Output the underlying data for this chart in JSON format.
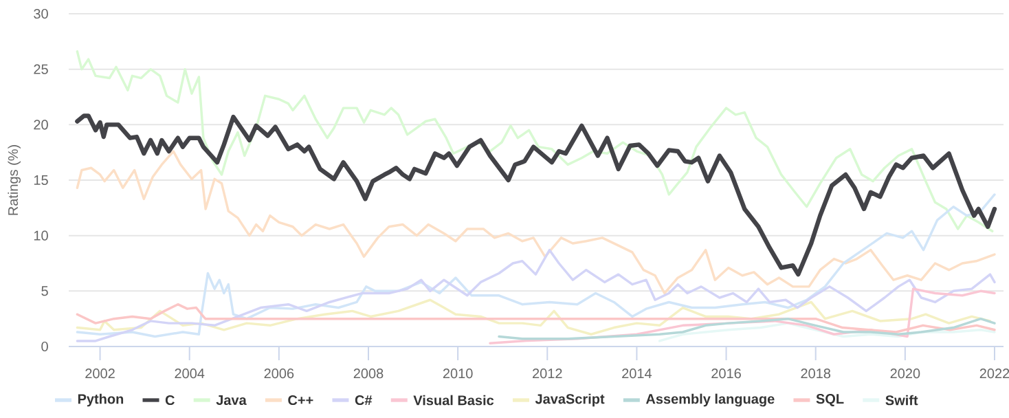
{
  "chart_data": {
    "type": "line",
    "ylabel": "Ratings (%)",
    "xlim": [
      2001.3,
      2022.2
    ],
    "xticks": [
      2002,
      2004,
      2006,
      2008,
      2010,
      2012,
      2014,
      2016,
      2018,
      2020,
      2022
    ],
    "ylim": [
      0,
      30
    ],
    "yticks": [
      0,
      5,
      10,
      15,
      20,
      25,
      30
    ],
    "grid": "y",
    "legend": "bottom",
    "line_style": "solid",
    "series": [
      {
        "name": "Python",
        "color": "#d1e5f8",
        "x": [
          2001.49,
          2002.0,
          2002.72,
          2003.23,
          2003.85,
          2004.21,
          2004.26,
          2004.41,
          2004.56,
          2004.67,
          2004.77,
          2004.87,
          2004.98,
          2005.28,
          2005.8,
          2006.31,
          2006.82,
          2007.33,
          2007.74,
          2007.95,
          2008.15,
          2008.67,
          2009.18,
          2009.59,
          2009.95,
          2010.31,
          2010.92,
          2011.44,
          2012.05,
          2012.67,
          2013.08,
          2013.49,
          2013.9,
          2014.21,
          2014.72,
          2015.23,
          2015.75,
          2016.36,
          2016.87,
          2017.38,
          2017.8,
          2018.21,
          2018.62,
          2019.59,
          2019.95,
          2020.15,
          2020.41,
          2020.72,
          2021.08,
          2021.38,
          2021.69,
          2022.0
        ],
        "values": [
          1.3,
          1.1,
          1.3,
          0.9,
          1.3,
          1.1,
          2.7,
          6.6,
          5.2,
          6,
          4.8,
          5.6,
          2.9,
          2.5,
          3.5,
          3.4,
          3.8,
          3.5,
          4,
          5.4,
          5,
          5,
          5.8,
          4.8,
          6.2,
          4.6,
          4.6,
          3.8,
          4,
          3.8,
          4.8,
          4,
          2.7,
          3.4,
          4,
          3.5,
          3.5,
          3.8,
          4,
          3.5,
          4.2,
          5.4,
          7.5,
          10.2,
          9.8,
          10.4,
          8.7,
          11.4,
          12.6,
          11.8,
          12.2,
          13.7
        ]
      },
      {
        "name": "C",
        "color": "#434348",
        "x": [
          2001.49,
          2001.64,
          2001.74,
          2001.9,
          2002.0,
          2002.08,
          2002.15,
          2002.41,
          2002.67,
          2002.82,
          2002.98,
          2003.13,
          2003.28,
          2003.38,
          2003.54,
          2003.74,
          2003.85,
          2004.0,
          2004.21,
          2004.31,
          2004.62,
          2004.77,
          2004.98,
          2005.34,
          2005.49,
          2005.75,
          2005.92,
          2006.21,
          2006.41,
          2006.57,
          2006.67,
          2006.92,
          2007.23,
          2007.44,
          2007.74,
          2007.93,
          2008.1,
          2008.36,
          2008.46,
          2008.62,
          2008.77,
          2008.92,
          2009.03,
          2009.28,
          2009.49,
          2009.69,
          2009.8,
          2009.98,
          2010.26,
          2010.51,
          2010.72,
          2011.13,
          2011.28,
          2011.49,
          2011.69,
          2012.1,
          2012.26,
          2012.41,
          2012.77,
          2013.13,
          2013.34,
          2013.59,
          2013.85,
          2014.05,
          2014.26,
          2014.46,
          2014.72,
          2014.92,
          2015.08,
          2015.23,
          2015.38,
          2015.59,
          2015.85,
          2016.1,
          2016.41,
          2016.72,
          2016.97,
          2017.23,
          2017.49,
          2017.61,
          2017.9,
          2018.1,
          2018.36,
          2018.67,
          2018.87,
          2019.08,
          2019.23,
          2019.44,
          2019.64,
          2019.8,
          2019.95,
          2020.15,
          2020.41,
          2020.62,
          2020.98,
          2021.28,
          2021.54,
          2021.64,
          2021.85,
          2022.0
        ],
        "values": [
          20.3,
          20.8,
          20.8,
          19.5,
          20.2,
          18.9,
          20,
          20,
          18.8,
          18.9,
          17.4,
          18.6,
          17.4,
          18.6,
          17.6,
          18.8,
          18,
          18.8,
          18.8,
          18,
          16.6,
          18.2,
          20.7,
          18.6,
          19.9,
          19,
          19.8,
          17.8,
          18.2,
          17.6,
          18,
          16,
          15.1,
          16.6,
          14.9,
          13.3,
          14.9,
          15.5,
          15.7,
          16.1,
          15.5,
          15.1,
          16,
          15.6,
          17.4,
          17,
          17.4,
          16.3,
          18,
          18.6,
          17.2,
          15,
          16.4,
          16.7,
          18,
          16.6,
          17.6,
          17.4,
          19.9,
          17.2,
          18.8,
          16,
          18.1,
          18.2,
          17.4,
          16.3,
          17.7,
          17.6,
          16.7,
          16.6,
          17,
          14.9,
          17.2,
          15.7,
          12.4,
          10.8,
          8.9,
          7.1,
          7.3,
          6.5,
          9.3,
          11.8,
          14.5,
          15.5,
          14.3,
          12.4,
          13.9,
          13.5,
          15.3,
          16.4,
          16.1,
          17,
          17.2,
          16.1,
          17.4,
          14.1,
          11.8,
          12.4,
          10.8,
          12.4
        ]
      },
      {
        "name": "Java",
        "color": "#d8f9d2",
        "x": [
          2001.49,
          2001.59,
          2001.74,
          2001.9,
          2002.21,
          2002.36,
          2002.62,
          2002.72,
          2002.92,
          2003.13,
          2003.34,
          2003.49,
          2003.74,
          2003.9,
          2004.05,
          2004.21,
          2004.31,
          2004.51,
          2004.72,
          2004.87,
          2005.08,
          2005.23,
          2005.49,
          2005.69,
          2006.0,
          2006.21,
          2006.31,
          2006.57,
          2006.82,
          2007.08,
          2007.23,
          2007.44,
          2007.74,
          2007.9,
          2008.05,
          2008.36,
          2008.51,
          2008.67,
          2008.87,
          2009.08,
          2009.28,
          2009.49,
          2009.74,
          2009.9,
          2010.21,
          2010.46,
          2010.72,
          2010.98,
          2011.18,
          2011.34,
          2011.59,
          2011.8,
          2012.1,
          2012.46,
          2012.77,
          2013.03,
          2013.34,
          2013.69,
          2014.0,
          2014.31,
          2014.57,
          2014.72,
          2014.92,
          2015.13,
          2015.33,
          2015.64,
          2016.0,
          2016.21,
          2016.41,
          2016.67,
          2016.92,
          2017.23,
          2017.54,
          2017.8,
          2018.1,
          2018.46,
          2018.77,
          2019.03,
          2019.28,
          2019.54,
          2019.85,
          2020.15,
          2020.46,
          2020.67,
          2020.92,
          2021.18,
          2021.38,
          2021.64,
          2021.95
        ],
        "values": [
          26.6,
          25,
          25.9,
          24.4,
          24.2,
          25.2,
          23.1,
          24.4,
          24.2,
          25,
          24.4,
          22.6,
          22,
          25,
          22.8,
          24.3,
          18.8,
          16.8,
          15.5,
          17.6,
          19.3,
          17.2,
          19.7,
          22.6,
          22.3,
          21.9,
          21.3,
          22.6,
          20.5,
          18.8,
          19.7,
          21.5,
          21.5,
          20.2,
          21.3,
          20.9,
          21.5,
          20.9,
          19.1,
          19.7,
          20.3,
          20.5,
          18.8,
          17.4,
          18,
          18.4,
          17.6,
          18.4,
          19.9,
          18.8,
          19.5,
          18,
          17.8,
          16.4,
          17,
          17.6,
          17.4,
          18.4,
          17.6,
          17.2,
          15.5,
          13.7,
          14.7,
          15.7,
          18,
          19.7,
          21.5,
          20.9,
          21.1,
          18.8,
          18,
          15.5,
          13.9,
          12.6,
          14.7,
          17,
          17.8,
          15.5,
          14.9,
          16.1,
          17.2,
          17.8,
          14.9,
          13,
          12.4,
          10.6,
          11.8,
          11.2,
          10.4
        ]
      },
      {
        "name": "C++",
        "color": "#fcdfc6",
        "x": [
          2001.49,
          2001.59,
          2001.8,
          2002.0,
          2002.1,
          2002.31,
          2002.51,
          2002.77,
          2002.98,
          2003.18,
          2003.38,
          2003.64,
          2003.8,
          2004.05,
          2004.26,
          2004.36,
          2004.56,
          2004.72,
          2004.87,
          2005.08,
          2005.34,
          2005.49,
          2005.64,
          2005.8,
          2006.0,
          2006.31,
          2006.51,
          2006.82,
          2007.13,
          2007.44,
          2007.74,
          2007.9,
          2008.21,
          2008.46,
          2008.77,
          2009.08,
          2009.34,
          2009.69,
          2009.95,
          2010.21,
          2010.57,
          2010.82,
          2011.13,
          2011.44,
          2011.69,
          2011.95,
          2012.31,
          2012.57,
          2012.87,
          2013.23,
          2013.59,
          2013.9,
          2014.15,
          2014.41,
          2014.62,
          2014.92,
          2015.23,
          2015.54,
          2015.75,
          2016.05,
          2016.36,
          2016.62,
          2016.92,
          2017.18,
          2017.49,
          2017.85,
          2018.1,
          2018.41,
          2018.67,
          2018.92,
          2019.23,
          2019.49,
          2019.74,
          2020.05,
          2020.36,
          2020.67,
          2020.98,
          2021.28,
          2021.59,
          2022.0
        ],
        "values": [
          14.3,
          15.9,
          16.1,
          15.5,
          14.9,
          15.9,
          14.3,
          15.9,
          13.3,
          15.3,
          16.4,
          17.6,
          16.4,
          15.1,
          15.9,
          12.4,
          15.1,
          14.7,
          12.2,
          11.6,
          10,
          11,
          10.4,
          11.8,
          11.2,
          10.8,
          10,
          11,
          10.6,
          11,
          9.3,
          8.1,
          9.8,
          10.8,
          11,
          10,
          11,
          10.2,
          9.5,
          10.6,
          10.6,
          9.8,
          10.2,
          9.5,
          9.8,
          8.1,
          9.8,
          9.3,
          9.5,
          9.8,
          9.1,
          8.5,
          6.9,
          6.4,
          4.8,
          6.2,
          6.9,
          8.7,
          6,
          7.1,
          6.4,
          6.7,
          5.6,
          6.2,
          5.4,
          5.4,
          6.9,
          7.9,
          7.5,
          7.9,
          8.7,
          7.3,
          6,
          6.4,
          6,
          7.5,
          6.9,
          7.5,
          7.7,
          8.3
        ]
      },
      {
        "name": "C#",
        "color": "#d3d4f7",
        "x": [
          2001.49,
          2001.9,
          2002.21,
          2002.72,
          2003.13,
          2003.54,
          2004.05,
          2004.56,
          2005.08,
          2005.59,
          2006.21,
          2006.62,
          2007.13,
          2007.85,
          2008.46,
          2008.87,
          2009.18,
          2009.38,
          2009.69,
          2010.21,
          2010.51,
          2010.92,
          2011.23,
          2011.44,
          2011.74,
          2012.05,
          2012.26,
          2012.57,
          2012.87,
          2013.28,
          2013.59,
          2013.9,
          2014.21,
          2014.41,
          2014.72,
          2014.92,
          2015.13,
          2015.44,
          2015.85,
          2016.15,
          2016.46,
          2016.72,
          2016.97,
          2017.33,
          2017.59,
          2017.9,
          2018.31,
          2018.72,
          2019.13,
          2019.54,
          2019.85,
          2020.1,
          2020.36,
          2020.67,
          2021.08,
          2021.49,
          2021.9,
          2022.0
        ],
        "values": [
          0.5,
          0.5,
          0.9,
          1.5,
          2.3,
          2.1,
          2.1,
          1.9,
          2.7,
          3.5,
          3.8,
          3.2,
          4,
          4.8,
          4.8,
          5.2,
          6,
          5,
          6,
          4.6,
          5.8,
          6.6,
          7.5,
          7.7,
          6.5,
          8.7,
          7.5,
          6,
          6.9,
          5.8,
          6.5,
          5.6,
          6,
          4.2,
          4.8,
          5.6,
          4.8,
          5.4,
          4.4,
          4.8,
          4,
          5.2,
          4,
          4.2,
          3.5,
          4.4,
          5.4,
          4.4,
          3.2,
          4.4,
          5.4,
          6,
          4.4,
          4,
          5,
          5.2,
          6.5,
          5.8
        ]
      },
      {
        "name": "Visual Basic",
        "color": "#fac6d3",
        "x": [
          2010.72,
          2011.44,
          2012.67,
          2014.0,
          2015.03,
          2016.05,
          2017.08,
          2017.8,
          2018.41,
          2019.23,
          2020.05,
          2020.18,
          2020.67,
          2021.28,
          2021.69,
          2022.0
        ],
        "values": [
          0.3,
          0.5,
          0.7,
          1.1,
          1.9,
          2.1,
          2.3,
          1.9,
          1.1,
          1.5,
          0.9,
          5.2,
          4.8,
          4.6,
          5,
          4.8
        ]
      },
      {
        "name": "JavaScript",
        "color": "#f4f0c3",
        "x": [
          2001.49,
          2002.0,
          2002.1,
          2002.31,
          2002.92,
          2003.34,
          2003.85,
          2004.26,
          2004.77,
          2005.28,
          2005.8,
          2006.41,
          2007.03,
          2007.64,
          2008.05,
          2008.67,
          2009.38,
          2009.69,
          2009.95,
          2010.51,
          2010.92,
          2011.44,
          2011.85,
          2012.15,
          2012.46,
          2012.98,
          2013.49,
          2014.0,
          2014.51,
          2015.03,
          2015.54,
          2016.05,
          2016.56,
          2017.18,
          2017.9,
          2018.21,
          2018.82,
          2019.44,
          2020.15,
          2020.46,
          2020.98,
          2021.49,
          2021.9
        ],
        "values": [
          1.7,
          1.5,
          2.3,
          1.5,
          1.7,
          3.2,
          1.9,
          2.1,
          1.5,
          2.1,
          1.9,
          2.5,
          2.9,
          3.2,
          2.7,
          3.2,
          4.2,
          3.5,
          2.9,
          2.7,
          2.1,
          2.1,
          1.9,
          3.2,
          1.7,
          1.1,
          1.7,
          2.1,
          1.9,
          3.5,
          2.7,
          2.7,
          2.5,
          2.9,
          4,
          2.5,
          3.2,
          2.3,
          2.5,
          2.9,
          2.1,
          2.7,
          2.3
        ]
      },
      {
        "name": "Assembly language",
        "color": "#b5d8d8",
        "x": [
          2010.92,
          2011.44,
          2012.46,
          2013.49,
          2014.51,
          2015.03,
          2015.54,
          2016.05,
          2016.77,
          2017.38,
          2017.99,
          2018.62,
          2019.23,
          2019.85,
          2020.36,
          2021.08,
          2021.69,
          2022.0
        ],
        "values": [
          0.9,
          0.7,
          0.7,
          0.9,
          1.1,
          1.3,
          1.9,
          2.1,
          2.3,
          2.5,
          1.9,
          1.3,
          1.3,
          1.1,
          1.3,
          1.7,
          2.5,
          2.1
        ]
      },
      {
        "name": "SQL",
        "color": "#fbc6c6",
        "x": [
          2001.49,
          2001.9,
          2002.31,
          2002.72,
          2003.13,
          2003.44,
          2003.74,
          2003.95,
          2004.15,
          2004.31,
          2004.36,
          2018.0,
          2018.6,
          2019.2,
          2019.8,
          2020.4,
          2021.0,
          2021.6,
          2022.0
        ],
        "values": [
          2.9,
          2.1,
          2.5,
          2.7,
          2.5,
          3.2,
          3.8,
          3.4,
          3.5,
          2.7,
          2.5,
          2.5,
          1.7,
          1.5,
          1.3,
          1.9,
          1.5,
          1.9,
          1.5
        ]
      },
      {
        "name": "Swift",
        "color": "#e6f8f6",
        "x": [
          2014.51,
          2015.03,
          2015.54,
          2016.05,
          2016.77,
          2017.38,
          2017.99,
          2018.62,
          2019.23,
          2019.85,
          2020.36,
          2021.08,
          2021.69,
          2022.0
        ],
        "values": [
          0.5,
          1.1,
          1.3,
          1.5,
          1.7,
          2.1,
          1.5,
          0.9,
          1.1,
          0.9,
          1.3,
          1.3,
          1.5,
          1.3
        ]
      }
    ]
  }
}
